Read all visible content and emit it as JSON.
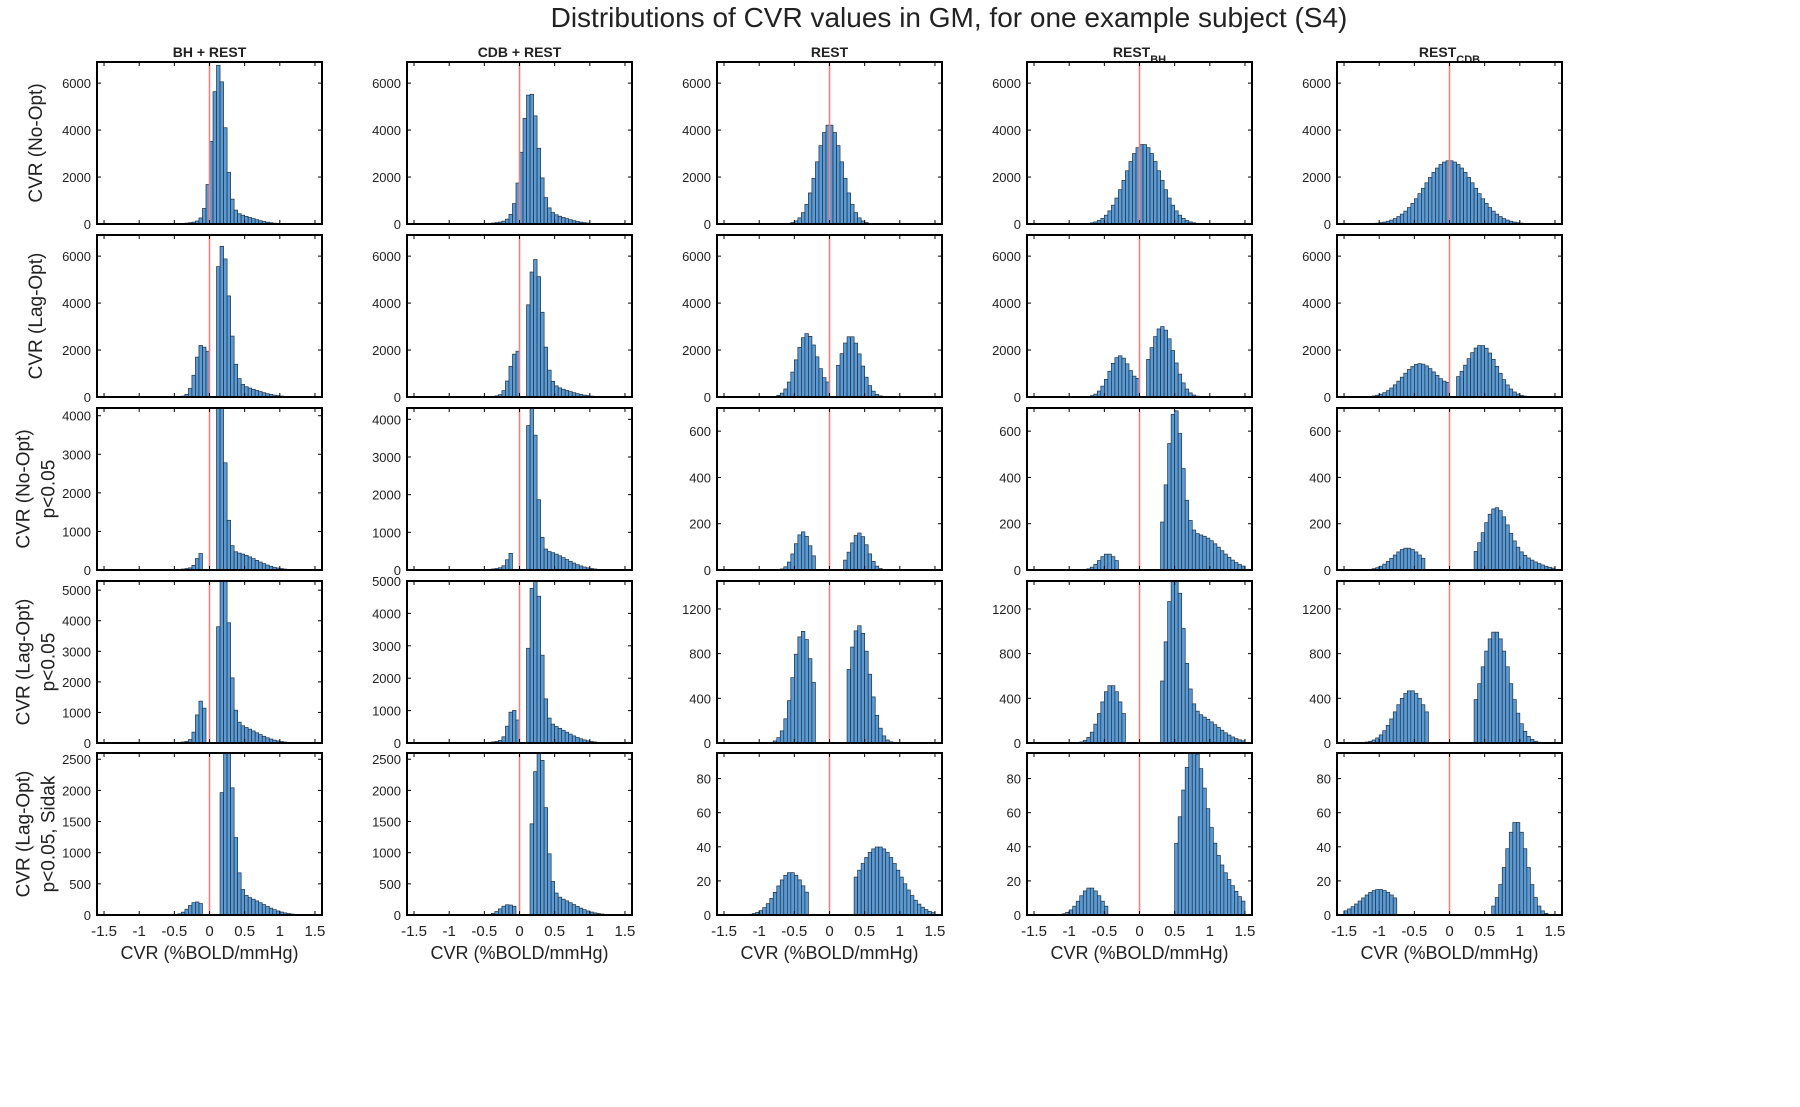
{
  "page": {
    "title": "Distributions of CVR values in GM, for one example subject (S4)"
  },
  "columns": [
    {
      "label": "BH + REST",
      "sub": ""
    },
    {
      "label": "CDB + REST",
      "sub": ""
    },
    {
      "label": "REST",
      "sub": ""
    },
    {
      "label": "REST",
      "sub": "BH"
    },
    {
      "label": "REST",
      "sub": "CDB"
    }
  ],
  "rows": [
    {
      "label_lines": [
        "CVR (No-Opt)"
      ]
    },
    {
      "label_lines": [
        "CVR (Lag-Opt)"
      ]
    },
    {
      "label_lines": [
        "CVR (No-Opt)",
        "p<0.05"
      ]
    },
    {
      "label_lines": [
        "CVR (Lag-Opt)",
        "p<0.05"
      ]
    },
    {
      "label_lines": [
        "CVR (Lag-Opt)",
        "p<0.05, Sidak"
      ]
    }
  ],
  "xlabel": "CVR (%BOLD/mmHg)",
  "colors": {
    "bar_fill": "#5b9bd5",
    "bar_stroke": "#1f3042",
    "zero_line": "#f08080",
    "frame": "#000000"
  },
  "chart_data": {
    "type": "bar",
    "subtype": "histogram-grid",
    "title": "Distributions of CVR values in GM, for one example subject (S4)",
    "xlabel": "CVR (%BOLD/mmHg)",
    "xlim": [
      -1.6,
      1.6
    ],
    "xticks": [
      -1.5,
      -1,
      -0.5,
      0,
      0.5,
      1,
      1.5
    ],
    "xtick_labels": [
      "-1.5",
      "-1",
      "-0.5",
      "0",
      "0.5",
      "1",
      "1.5"
    ],
    "bin_width": 0.05,
    "bins_from": -1.5,
    "bins_to": 1.5,
    "reference_line_x": 0,
    "rows": [
      {
        "row_label": "CVR (No-Opt)",
        "ylim": [
          0,
          6900
        ],
        "yticks": [
          0,
          2000,
          4000,
          6000
        ],
        "panels": [
          {
            "column": "BH + REST",
            "components": [
              {
                "mu": 0.13,
                "sigma": 0.09,
                "peak": 6400
              },
              {
                "mu": 0.3,
                "sigma": 0.28,
                "peak": 450
              }
            ]
          },
          {
            "column": "CDB + REST",
            "components": [
              {
                "mu": 0.15,
                "sigma": 0.11,
                "peak": 5200
              },
              {
                "mu": 0.3,
                "sigma": 0.3,
                "peak": 500
              }
            ]
          },
          {
            "column": "REST",
            "components": [
              {
                "mu": 0.0,
                "sigma": 0.18,
                "peak": 4250
              }
            ]
          },
          {
            "column": "RESTBH",
            "components": [
              {
                "mu": 0.05,
                "sigma": 0.25,
                "peak": 3400
              }
            ]
          },
          {
            "column": "RESTCDB",
            "components": [
              {
                "mu": 0.0,
                "sigma": 0.35,
                "peak": 2700
              }
            ]
          }
        ]
      },
      {
        "row_label": "CVR (Lag-Opt)",
        "ylim": [
          0,
          6900
        ],
        "yticks": [
          0,
          2000,
          4000,
          6000
        ],
        "gap": [
          -0.02,
          0.12
        ],
        "panels": [
          {
            "column": "BH + REST",
            "components": [
              {
                "mu": 0.18,
                "sigma": 0.1,
                "peak": 6000
              },
              {
                "mu": -0.12,
                "sigma": 0.08,
                "peak": 2000
              },
              {
                "mu": 0.35,
                "sigma": 0.3,
                "peak": 500
              }
            ]
          },
          {
            "column": "CDB + REST",
            "components": [
              {
                "mu": 0.22,
                "sigma": 0.1,
                "peak": 5400
              },
              {
                "mu": -0.06,
                "sigma": 0.08,
                "peak": 1600
              },
              {
                "mu": 0.35,
                "sigma": 0.3,
                "peak": 500
              }
            ]
          },
          {
            "column": "REST",
            "components": [
              {
                "mu": -0.32,
                "sigma": 0.15,
                "peak": 2700
              },
              {
                "mu": 0.3,
                "sigma": 0.15,
                "peak": 2600
              }
            ]
          },
          {
            "column": "RESTBH",
            "components": [
              {
                "mu": -0.28,
                "sigma": 0.15,
                "peak": 1750
              },
              {
                "mu": 0.32,
                "sigma": 0.17,
                "peak": 3000
              }
            ]
          },
          {
            "column": "RESTCDB",
            "components": [
              {
                "mu": -0.42,
                "sigma": 0.25,
                "peak": 1420
              },
              {
                "mu": 0.45,
                "sigma": 0.22,
                "peak": 2200
              }
            ]
          }
        ]
      },
      {
        "rows_note": "per-column y-axis ranges",
        "row_label": "CVR (No-Opt) p<0.05",
        "panels": [
          {
            "column": "BH + REST",
            "ylim": [
              0,
              4200
            ],
            "yticks": [
              0,
              1000,
              2000,
              3000,
              4000
            ],
            "gap": [
              -0.08,
              0.1
            ],
            "components": [
              {
                "mu": 0.15,
                "sigma": 0.07,
                "peak": 4200
              },
              {
                "mu": 0.35,
                "sigma": 0.3,
                "peak": 450
              },
              {
                "mu": -0.13,
                "sigma": 0.05,
                "peak": 300
              }
            ]
          },
          {
            "column": "CDB + REST",
            "ylim": [
              0,
              4300
            ],
            "yticks": [
              0,
              1000,
              2000,
              3000,
              4000
            ],
            "gap": [
              -0.08,
              0.12
            ],
            "components": [
              {
                "mu": 0.17,
                "sigma": 0.07,
                "peak": 4250
              },
              {
                "mu": 0.35,
                "sigma": 0.3,
                "peak": 500
              },
              {
                "mu": -0.12,
                "sigma": 0.05,
                "peak": 300
              }
            ]
          },
          {
            "column": "REST",
            "ylim": [
              0,
              700
            ],
            "yticks": [
              0,
              200,
              400,
              600
            ],
            "gap": [
              -0.18,
              0.18
            ],
            "components": [
              {
                "mu": -0.38,
                "sigma": 0.11,
                "peak": 165
              },
              {
                "mu": 0.42,
                "sigma": 0.12,
                "peak": 160
              }
            ]
          },
          {
            "column": "RESTBH",
            "ylim": [
              0,
              700
            ],
            "yticks": [
              0,
              200,
              400,
              600
            ],
            "gap": [
              -0.3,
              0.3
            ],
            "components": [
              {
                "mu": -0.45,
                "sigma": 0.12,
                "peak": 70
              },
              {
                "mu": 0.5,
                "sigma": 0.11,
                "peak": 620
              },
              {
                "mu": 0.85,
                "sigma": 0.3,
                "peak": 150
              }
            ]
          },
          {
            "column": "RESTCDB",
            "ylim": [
              0,
              700
            ],
            "yticks": [
              0,
              200,
              400,
              600
            ],
            "gap": [
              -0.35,
              0.35
            ],
            "components": [
              {
                "mu": -0.6,
                "sigma": 0.2,
                "peak": 95
              },
              {
                "mu": 0.65,
                "sigma": 0.18,
                "peak": 250
              },
              {
                "mu": 1.0,
                "sigma": 0.25,
                "peak": 50
              }
            ]
          }
        ]
      },
      {
        "row_label": "CVR (Lag-Opt) p<0.05",
        "panels": [
          {
            "column": "BH + REST",
            "ylim": [
              0,
              5300
            ],
            "yticks": [
              0,
              1000,
              2000,
              3000,
              4000,
              5000
            ],
            "gap": [
              -0.05,
              0.12
            ],
            "components": [
              {
                "mu": 0.2,
                "sigma": 0.08,
                "peak": 5200
              },
              {
                "mu": 0.35,
                "sigma": 0.3,
                "peak": 600
              },
              {
                "mu": -0.12,
                "sigma": 0.06,
                "peak": 1200
              }
            ]
          },
          {
            "column": "CDB + REST",
            "ylim": [
              0,
              5000
            ],
            "yticks": [
              0,
              1000,
              2000,
              3000,
              4000,
              5000
            ],
            "gap": [
              -0.02,
              0.12
            ],
            "components": [
              {
                "mu": 0.22,
                "sigma": 0.08,
                "peak": 5000
              },
              {
                "mu": 0.35,
                "sigma": 0.3,
                "peak": 600
              },
              {
                "mu": -0.1,
                "sigma": 0.06,
                "peak": 850
              }
            ]
          },
          {
            "column": "REST",
            "ylim": [
              0,
              1450
            ],
            "yticks": [
              0,
              400,
              800,
              1200
            ],
            "gap": [
              -0.2,
              0.25
            ],
            "components": [
              {
                "mu": -0.38,
                "sigma": 0.14,
                "peak": 1000
              },
              {
                "mu": 0.42,
                "sigma": 0.15,
                "peak": 1050
              }
            ]
          },
          {
            "column": "RESTBH",
            "ylim": [
              0,
              1450
            ],
            "yticks": [
              0,
              400,
              800,
              1200
            ],
            "gap": [
              -0.2,
              0.3
            ],
            "components": [
              {
                "mu": -0.4,
                "sigma": 0.15,
                "peak": 520
              },
              {
                "mu": 0.5,
                "sigma": 0.12,
                "peak": 1400
              },
              {
                "mu": 0.8,
                "sigma": 0.3,
                "peak": 250
              }
            ]
          },
          {
            "column": "RESTCDB",
            "ylim": [
              0,
              1450
            ],
            "yticks": [
              0,
              400,
              800,
              1200
            ],
            "gap": [
              -0.3,
              0.35
            ],
            "components": [
              {
                "mu": -0.55,
                "sigma": 0.22,
                "peak": 470
              },
              {
                "mu": 0.65,
                "sigma": 0.2,
                "peak": 1000
              }
            ]
          }
        ]
      },
      {
        "row_label": "CVR (Lag-Opt) p<0.05, Sidak",
        "panels": [
          {
            "column": "BH + REST",
            "ylim": [
              0,
              2600
            ],
            "yticks": [
              0,
              500,
              1000,
              1500,
              2000,
              2500
            ],
            "gap": [
              -0.08,
              0.15
            ],
            "components": [
              {
                "mu": 0.25,
                "sigma": 0.09,
                "peak": 2500
              },
              {
                "mu": 0.45,
                "sigma": 0.3,
                "peak": 300
              },
              {
                "mu": -0.2,
                "sigma": 0.1,
                "peak": 180
              }
            ]
          },
          {
            "column": "CDB + REST",
            "ylim": [
              0,
              2600
            ],
            "yticks": [
              0,
              500,
              1000,
              1500,
              2000,
              2500
            ],
            "gap": [
              -0.05,
              0.15
            ],
            "components": [
              {
                "mu": 0.28,
                "sigma": 0.09,
                "peak": 2500
              },
              {
                "mu": 0.45,
                "sigma": 0.3,
                "peak": 300
              },
              {
                "mu": -0.18,
                "sigma": 0.1,
                "peak": 130
              }
            ]
          },
          {
            "column": "REST",
            "ylim": [
              0,
              95
            ],
            "yticks": [
              0,
              20,
              40,
              60,
              80
            ],
            "gap": [
              -0.3,
              0.35
            ],
            "components": [
              {
                "mu": -0.55,
                "sigma": 0.2,
                "peak": 25
              },
              {
                "mu": 0.7,
                "sigma": 0.3,
                "peak": 40
              }
            ]
          },
          {
            "column": "RESTBH",
            "ylim": [
              0,
              95
            ],
            "yticks": [
              0,
              20,
              40,
              60,
              80
            ],
            "gap": [
              -0.45,
              0.5
            ],
            "components": [
              {
                "mu": -0.7,
                "sigma": 0.15,
                "peak": 16
              },
              {
                "mu": 0.75,
                "sigma": 0.18,
                "peak": 88
              },
              {
                "mu": 1.1,
                "sigma": 0.25,
                "peak": 25
              }
            ]
          },
          {
            "column": "RESTCDB",
            "ylim": [
              0,
              95
            ],
            "yticks": [
              0,
              20,
              40,
              60,
              80
            ],
            "gap": [
              -0.75,
              0.6
            ],
            "components": [
              {
                "mu": -1.0,
                "sigma": 0.25,
                "peak": 15
              },
              {
                "mu": 0.95,
                "sigma": 0.15,
                "peak": 55
              }
            ]
          }
        ]
      }
    ]
  }
}
